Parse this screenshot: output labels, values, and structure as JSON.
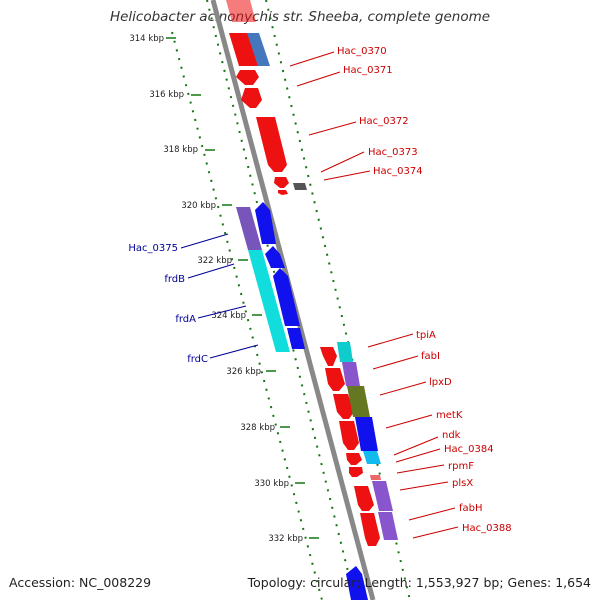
{
  "title": "Helicobacter acinonychis str. Sheeba, complete genome",
  "footer": {
    "accession": "Accession: NC_008229",
    "topology": "Topology: circular; Length: 1,553,927 bp; Genes: 1,654"
  },
  "colors": {
    "forward_gene": "#ee1111",
    "reverse_gene": "#1111ee",
    "forward_label": "#cc0000",
    "reverse_label": "#000099",
    "backbone": "#888888",
    "tick": "#117711"
  },
  "ticks": [
    "314 kbp",
    "316 kbp",
    "318 kbp",
    "320 kbp",
    "322 kbp",
    "324 kbp",
    "326 kbp",
    "328 kbp",
    "330 kbp",
    "332 kbp"
  ],
  "right_labels": [
    "Hac_0370",
    "Hac_0371",
    "Hac_0372",
    "Hac_0373",
    "Hac_0374",
    "tpiA",
    "fabI",
    "lpxD",
    "metK",
    "ndk",
    "Hac_0384",
    "rpmF",
    "plsX",
    "fabH",
    "Hac_0388"
  ],
  "left_labels": [
    "Hac_0375",
    "frdB",
    "frdA",
    "frdC"
  ]
}
